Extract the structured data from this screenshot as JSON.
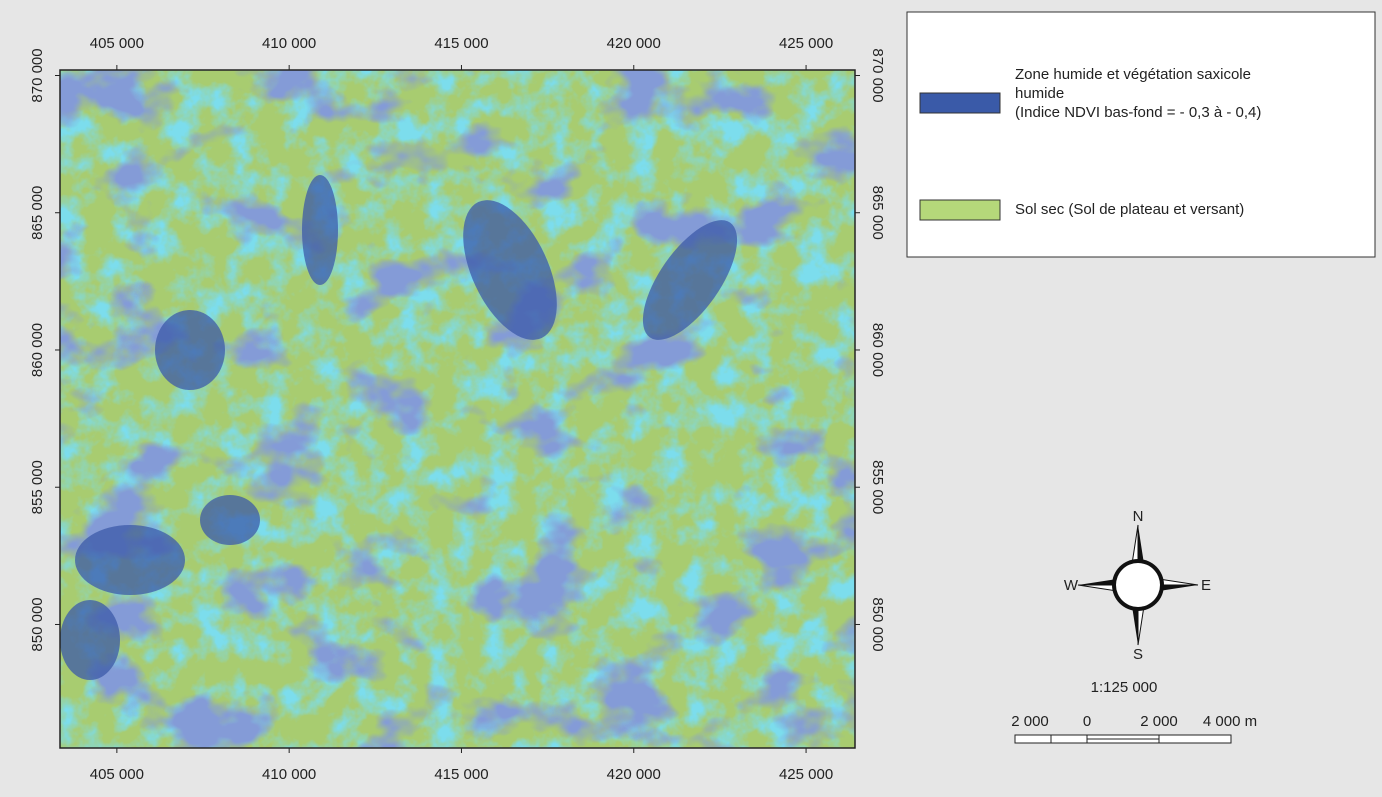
{
  "map": {
    "xlim": [
      403350,
      426420
    ],
    "ylim": [
      845500,
      870200
    ],
    "x_ticks": [
      {
        "value": 405000,
        "label": "405 000"
      },
      {
        "value": 410000,
        "label": "410 000"
      },
      {
        "value": 415000,
        "label": "415 000"
      },
      {
        "value": 420000,
        "label": "420 000"
      },
      {
        "value": 425000,
        "label": "425 000"
      }
    ],
    "y_ticks": [
      {
        "value": 850000,
        "label": "850 000"
      },
      {
        "value": 855000,
        "label": "855 000"
      },
      {
        "value": 860000,
        "label": "860 000"
      },
      {
        "value": 865000,
        "label": "865 000"
      },
      {
        "value": 870000,
        "label": "870 000"
      }
    ],
    "legend": [
      {
        "color": "#3a5aa8",
        "lines": [
          "Zone humide et végétation saxicole",
          "humide",
          "(Indice NDVI bas-fond = - 0,3 à - 0,4)"
        ]
      },
      {
        "color": "#b5d87a",
        "lines": [
          "Sol sec (Sol de plateau et versant)"
        ]
      }
    ],
    "compass": {
      "north": "N",
      "south": "S",
      "east": "E",
      "west": "W"
    },
    "scale": "1:125 000",
    "scale_bar_labels": [
      "2 000",
      "0",
      "2 000",
      "4 000 m"
    ]
  }
}
